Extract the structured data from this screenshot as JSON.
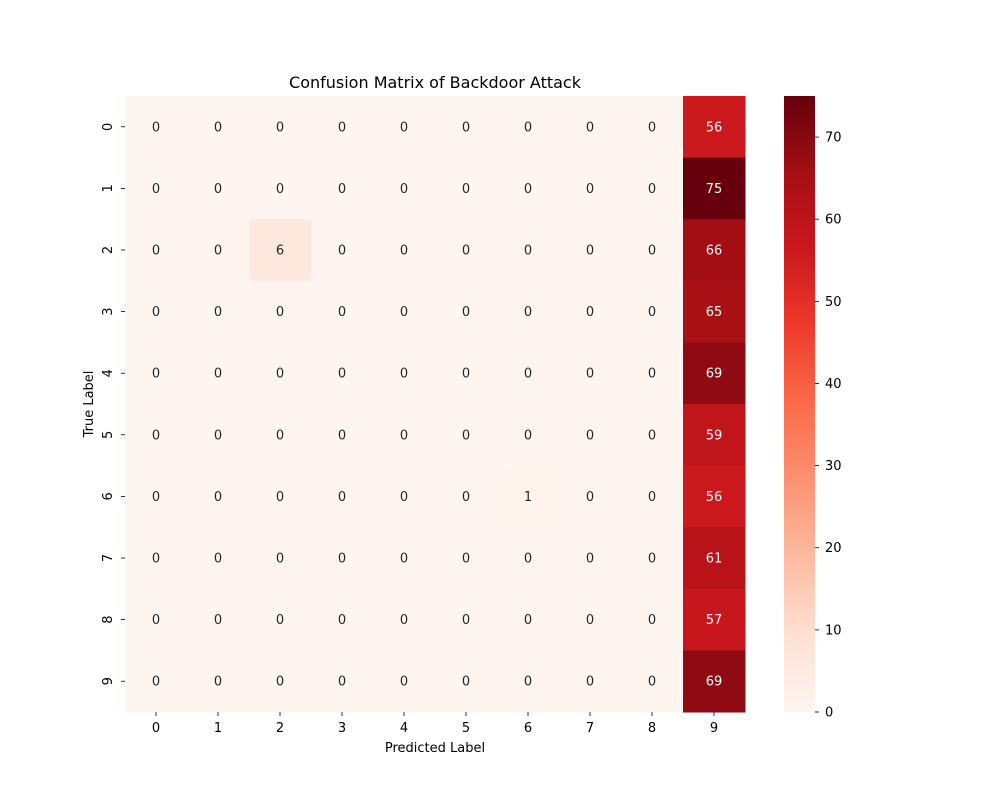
{
  "chart_data": {
    "type": "heatmap",
    "title": "Confusion Matrix of Backdoor Attack",
    "xlabel": "Predicted Label",
    "ylabel": "True Label",
    "x_categories": [
      "0",
      "1",
      "2",
      "3",
      "4",
      "5",
      "6",
      "7",
      "8",
      "9"
    ],
    "y_categories": [
      "0",
      "1",
      "2",
      "3",
      "4",
      "5",
      "6",
      "7",
      "8",
      "9"
    ],
    "values": [
      [
        0,
        0,
        0,
        0,
        0,
        0,
        0,
        0,
        0,
        56
      ],
      [
        0,
        0,
        0,
        0,
        0,
        0,
        0,
        0,
        0,
        75
      ],
      [
        0,
        0,
        6,
        0,
        0,
        0,
        0,
        0,
        0,
        66
      ],
      [
        0,
        0,
        0,
        0,
        0,
        0,
        0,
        0,
        0,
        65
      ],
      [
        0,
        0,
        0,
        0,
        0,
        0,
        0,
        0,
        0,
        69
      ],
      [
        0,
        0,
        0,
        0,
        0,
        0,
        0,
        0,
        0,
        59
      ],
      [
        0,
        0,
        0,
        0,
        0,
        0,
        1,
        0,
        0,
        56
      ],
      [
        0,
        0,
        0,
        0,
        0,
        0,
        0,
        0,
        0,
        61
      ],
      [
        0,
        0,
        0,
        0,
        0,
        0,
        0,
        0,
        0,
        57
      ],
      [
        0,
        0,
        0,
        0,
        0,
        0,
        0,
        0,
        0,
        69
      ]
    ],
    "colorbar": {
      "colormap": "Reds",
      "range": [
        0,
        75
      ],
      "ticks": [
        0,
        10,
        20,
        30,
        40,
        50,
        60,
        70
      ]
    },
    "annotations": true
  }
}
